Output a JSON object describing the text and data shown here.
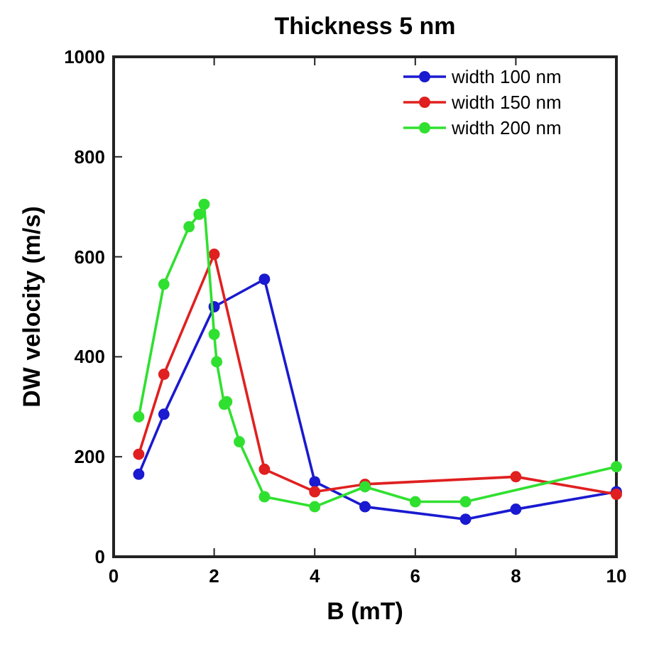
{
  "chart_data": {
    "type": "line",
    "title": "Thickness 5 nm",
    "xlabel": "B (mT)",
    "ylabel": "DW velocity (m/s)",
    "xlim": [
      0,
      10
    ],
    "xticks": [
      0,
      2,
      4,
      6,
      8,
      10
    ],
    "ylim": [
      0,
      1000
    ],
    "yticks": [
      0,
      200,
      400,
      600,
      800,
      1000
    ],
    "marker": "circle",
    "legend": "top right",
    "grid": false,
    "series": [
      {
        "name": "width 100 nm",
        "color": "#1a1ad0",
        "x": [
          0.5,
          1,
          2,
          3,
          4,
          5,
          7,
          8,
          10
        ],
        "values": [
          165,
          285,
          500,
          555,
          150,
          100,
          75,
          95,
          130
        ]
      },
      {
        "name": "width 150 nm",
        "color": "#e02020",
        "x": [
          0.5,
          1,
          2,
          3,
          4,
          5,
          8,
          10
        ],
        "values": [
          205,
          365,
          605,
          175,
          130,
          145,
          160,
          125
        ]
      },
      {
        "name": "width 200 nm",
        "color": "#30e030",
        "x": [
          0.5,
          1,
          1.5,
          1.7,
          1.8,
          2,
          2.05,
          2.2,
          2.25,
          2.5,
          3,
          4,
          5,
          6,
          7,
          10
        ],
        "values": [
          280,
          545,
          660,
          685,
          705,
          445,
          390,
          305,
          310,
          230,
          120,
          100,
          140,
          110,
          110,
          180
        ]
      }
    ]
  }
}
